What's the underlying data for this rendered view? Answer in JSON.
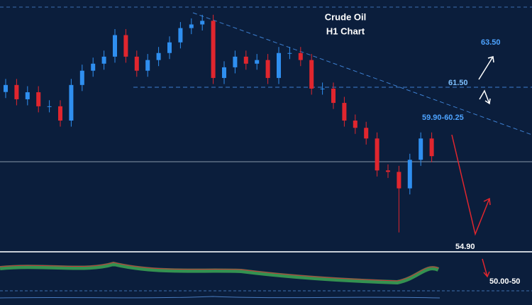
{
  "chart_data": {
    "type": "candlestick",
    "title": "Crude Oil",
    "subtitle": "H1 Chart",
    "categories": [
      null,
      null,
      null,
      null,
      null,
      null,
      null,
      null,
      null,
      null,
      null,
      null,
      null,
      null,
      null,
      null,
      null,
      null,
      null,
      null,
      null,
      null,
      null,
      null,
      null,
      null,
      null,
      null,
      null,
      null,
      null,
      null,
      null,
      null,
      null,
      null,
      null,
      null,
      null,
      null
    ],
    "open": [
      61.3,
      61.59,
      61.0,
      61.29,
      60.71,
      60.71,
      60.12,
      61.59,
      62.18,
      62.47,
      62.76,
      63.65,
      62.76,
      62.18,
      62.62,
      62.91,
      63.35,
      63.94,
      64.09,
      64.24,
      61.88,
      62.32,
      62.76,
      62.47,
      62.62,
      61.88,
      62.91,
      62.91,
      62.62,
      61.44,
      61.44,
      60.85,
      60.12,
      59.82,
      59.38,
      58.06,
      58.0,
      57.32,
      58.5,
      59.38
    ],
    "high": [
      61.84,
      61.84,
      61.54,
      61.54,
      60.96,
      60.96,
      61.84,
      62.43,
      62.72,
      63.01,
      63.9,
      63.9,
      63.01,
      62.87,
      63.16,
      63.6,
      64.19,
      64.34,
      64.49,
      64.49,
      62.57,
      63.01,
      63.01,
      62.87,
      62.87,
      63.16,
      63.16,
      63.16,
      62.87,
      61.69,
      61.69,
      61.1,
      60.37,
      60.07,
      59.63,
      58.31,
      58.25,
      58.75,
      59.63,
      59.63
    ],
    "low": [
      61.05,
      60.75,
      60.75,
      60.46,
      60.46,
      59.87,
      59.87,
      61.34,
      61.93,
      62.22,
      62.51,
      62.51,
      61.93,
      61.93,
      62.37,
      62.66,
      63.1,
      63.69,
      63.84,
      61.63,
      61.63,
      62.07,
      62.22,
      62.22,
      61.63,
      61.63,
      62.66,
      62.37,
      61.19,
      61.19,
      60.6,
      59.87,
      59.57,
      59.13,
      57.81,
      57.75,
      55.5,
      57.07,
      58.25,
      58.4
    ],
    "close": [
      61.59,
      61.0,
      61.29,
      60.71,
      60.71,
      60.12,
      61.59,
      62.18,
      62.47,
      62.76,
      63.65,
      62.76,
      62.18,
      62.62,
      62.91,
      63.35,
      63.94,
      64.09,
      64.24,
      61.88,
      62.32,
      62.76,
      62.47,
      62.62,
      61.88,
      62.91,
      62.91,
      62.62,
      61.44,
      61.44,
      60.85,
      60.12,
      59.82,
      59.38,
      58.06,
      58.0,
      57.32,
      58.5,
      59.38,
      58.65
    ],
    "up_color": "#2f8ff0",
    "down_color": "#e0262e",
    "ylim": [
      54.7,
      65.1
    ],
    "annotations": [
      "63.50",
      "61.50",
      "59.90-60.25",
      "54.90",
      "50.00-50"
    ]
  }
}
